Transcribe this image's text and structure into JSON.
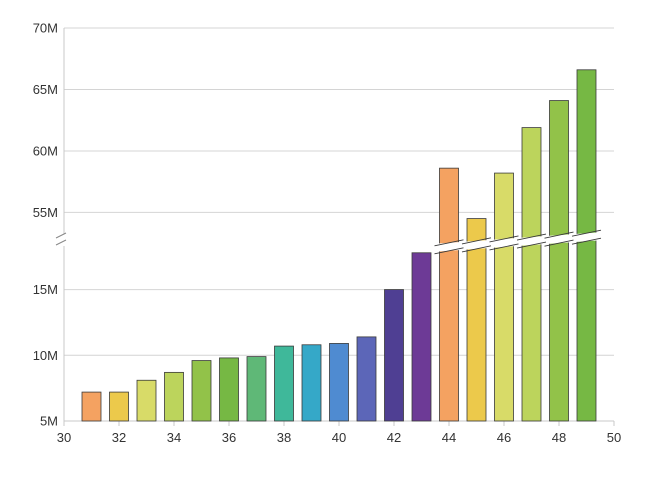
{
  "chart_data": {
    "type": "bar",
    "title": "",
    "xlabel": "",
    "ylabel": "",
    "x": [
      31,
      32,
      33,
      34,
      35,
      36,
      37,
      38,
      39,
      40,
      41,
      42,
      43,
      44,
      45,
      46,
      47,
      48,
      49
    ],
    "values": [
      7.2,
      7.2,
      8.1,
      8.7,
      9.6,
      9.8,
      9.9,
      10.7,
      10.8,
      10.9,
      11.4,
      15.0,
      17.8,
      58.6,
      54.5,
      58.2,
      61.9,
      64.1,
      66.6
    ],
    "colors": [
      "#f4a261",
      "#ecc94b",
      "#d8db68",
      "#bcd45c",
      "#92c249",
      "#76b844",
      "#5fb877",
      "#3fb89a",
      "#35a8c8",
      "#4f8bd1",
      "#5c66b8",
      "#4f3f93",
      "#6d3a96",
      "#f4a261",
      "#ecc94b",
      "#d8db68",
      "#bcd45c",
      "#92c249",
      "#76b844"
    ],
    "xlim": [
      30,
      50
    ],
    "x_ticks": [
      "30",
      "32",
      "34",
      "36",
      "38",
      "40",
      "42",
      "44",
      "46",
      "48",
      "50"
    ],
    "y_axis_break": true,
    "ylim_lower": [
      5,
      19
    ],
    "ylim_upper": [
      53,
      70
    ],
    "y_ticks_lower": [
      "5M",
      "10M",
      "15M"
    ],
    "y_ticks_upper": [
      "55M",
      "60M",
      "65M",
      "70M"
    ],
    "grid": "horizontal",
    "legend": "none"
  }
}
